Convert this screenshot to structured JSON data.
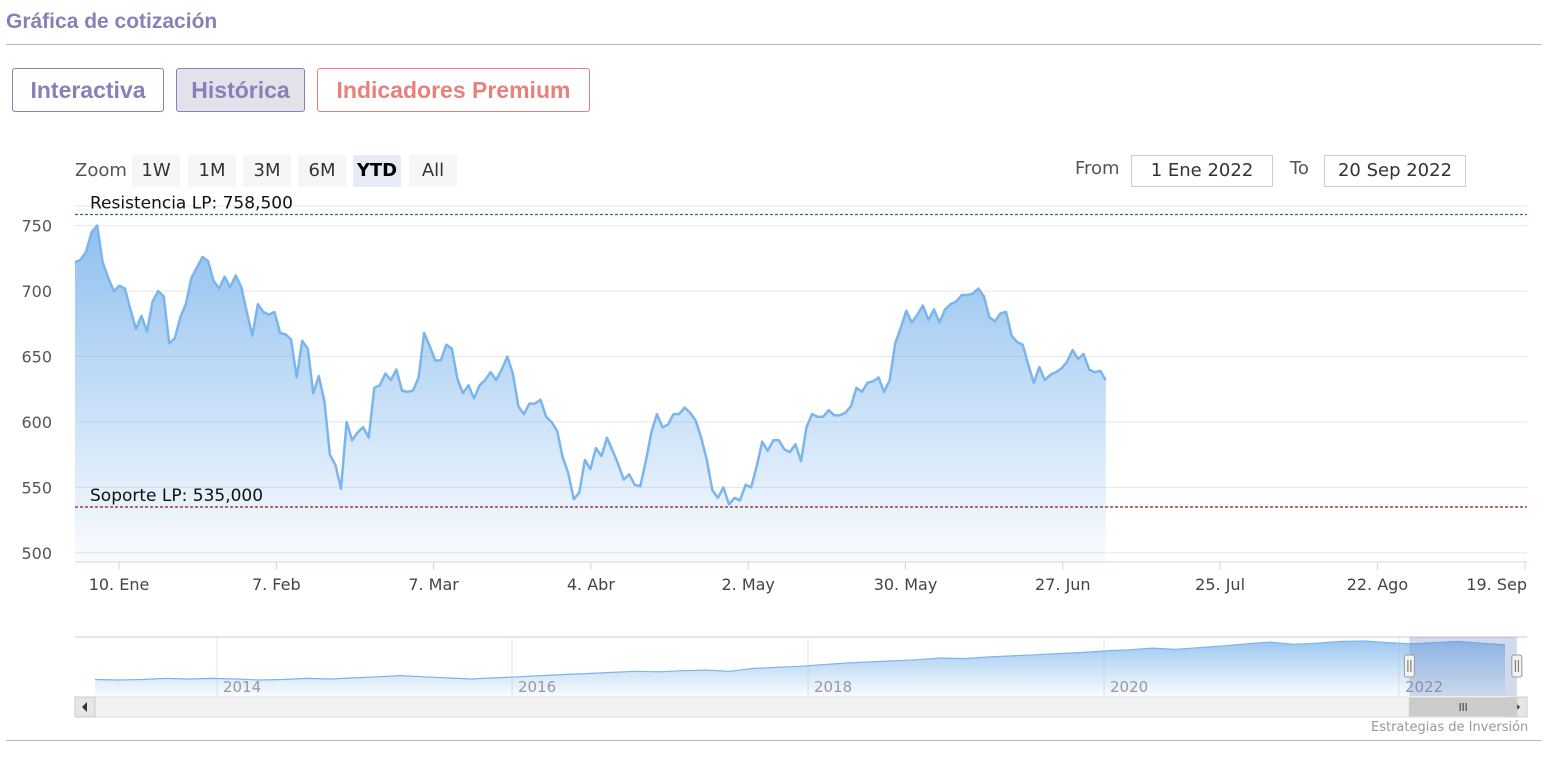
{
  "page": {
    "title": "Gráfica de cotización"
  },
  "tabs": [
    {
      "label": "Interactiva"
    },
    {
      "label": "Histórica"
    },
    {
      "label": "Indicadores Premium"
    }
  ],
  "zoom": {
    "label": "Zoom",
    "buttons": [
      "1W",
      "1M",
      "3M",
      "6M",
      "YTD",
      "All"
    ],
    "selected": "YTD"
  },
  "range": {
    "from_label": "From",
    "from_value": "1 Ene 2022",
    "to_label": "To",
    "to_value": "20 Sep 2022"
  },
  "chart_data": {
    "type": "area",
    "y_ticks": [
      "750",
      "700",
      "650",
      "600",
      "550",
      "500"
    ],
    "x_ticks": [
      "10. Ene",
      "7. Feb",
      "7. Mar",
      "4. Abr",
      "2. May",
      "30. May",
      "27. Jun",
      "25. Jul",
      "22. Ago",
      "19. Sep"
    ],
    "ylim": [
      493,
      765
    ],
    "xlim": [
      "2022-01-01",
      "2022-09-20"
    ],
    "plot_lines": [
      {
        "label": "Resistencia LP: 758,500",
        "value": 758.5,
        "color": "#2e7d32"
      },
      {
        "label": "Soporte LP: 535,000",
        "value": 535.0,
        "color": "#8b1a1a"
      }
    ],
    "series": [
      {
        "color": "#7cb5ec",
        "points": [
          [
            "2022-01-01",
            722
          ],
          [
            "2022-01-02",
            724
          ],
          [
            "2022-01-03",
            730
          ],
          [
            "2022-01-04",
            745
          ],
          [
            "2022-01-05",
            750
          ],
          [
            "2022-01-06",
            722
          ],
          [
            "2022-01-07",
            710
          ],
          [
            "2022-01-08",
            700
          ],
          [
            "2022-01-09",
            704
          ],
          [
            "2022-01-10",
            702
          ],
          [
            "2022-01-11",
            686
          ],
          [
            "2022-01-12",
            671
          ],
          [
            "2022-01-13",
            681
          ],
          [
            "2022-01-14",
            669
          ],
          [
            "2022-01-15",
            692
          ],
          [
            "2022-01-16",
            700
          ],
          [
            "2022-01-17",
            696
          ],
          [
            "2022-01-18",
            660
          ],
          [
            "2022-01-19",
            664
          ],
          [
            "2022-01-20",
            680
          ],
          [
            "2022-01-21",
            690
          ],
          [
            "2022-01-22",
            710
          ],
          [
            "2022-01-23",
            718
          ],
          [
            "2022-01-24",
            726
          ],
          [
            "2022-01-25",
            723
          ],
          [
            "2022-01-26",
            708
          ],
          [
            "2022-01-27",
            702
          ],
          [
            "2022-01-28",
            711
          ],
          [
            "2022-01-29",
            703
          ],
          [
            "2022-01-30",
            712
          ],
          [
            "2022-01-31",
            703
          ],
          [
            "2022-02-01",
            684
          ],
          [
            "2022-02-02",
            666
          ],
          [
            "2022-02-03",
            690
          ],
          [
            "2022-02-04",
            684
          ],
          [
            "2022-02-05",
            682
          ],
          [
            "2022-02-06",
            684
          ],
          [
            "2022-02-07",
            668
          ],
          [
            "2022-02-08",
            667
          ],
          [
            "2022-02-09",
            663
          ],
          [
            "2022-02-10",
            634
          ],
          [
            "2022-02-11",
            662
          ],
          [
            "2022-02-12",
            656
          ],
          [
            "2022-02-13",
            622
          ],
          [
            "2022-02-14",
            635
          ],
          [
            "2022-02-15",
            616
          ],
          [
            "2022-02-16",
            575
          ],
          [
            "2022-02-17",
            567
          ],
          [
            "2022-02-18",
            549
          ],
          [
            "2022-02-19",
            600
          ],
          [
            "2022-02-20",
            586
          ],
          [
            "2022-02-21",
            592
          ],
          [
            "2022-02-22",
            596
          ],
          [
            "2022-02-23",
            588
          ],
          [
            "2022-02-24",
            626
          ],
          [
            "2022-02-25",
            628
          ],
          [
            "2022-02-26",
            637
          ],
          [
            "2022-02-27",
            632
          ],
          [
            "2022-02-28",
            640
          ],
          [
            "2022-03-01",
            624
          ],
          [
            "2022-03-02",
            623
          ],
          [
            "2022-03-03",
            624
          ],
          [
            "2022-03-04",
            634
          ],
          [
            "2022-03-05",
            668
          ],
          [
            "2022-03-06",
            658
          ],
          [
            "2022-03-07",
            647
          ],
          [
            "2022-03-08",
            647
          ],
          [
            "2022-03-09",
            659
          ],
          [
            "2022-03-10",
            656
          ],
          [
            "2022-03-11",
            633
          ],
          [
            "2022-03-12",
            622
          ],
          [
            "2022-03-13",
            628
          ],
          [
            "2022-03-14",
            618
          ],
          [
            "2022-03-15",
            628
          ],
          [
            "2022-03-16",
            632
          ],
          [
            "2022-03-17",
            638
          ],
          [
            "2022-03-18",
            632
          ],
          [
            "2022-03-19",
            640
          ],
          [
            "2022-03-20",
            650
          ],
          [
            "2022-03-21",
            637
          ],
          [
            "2022-03-22",
            612
          ],
          [
            "2022-03-23",
            606
          ],
          [
            "2022-03-24",
            614
          ],
          [
            "2022-03-25",
            614
          ],
          [
            "2022-03-26",
            617
          ],
          [
            "2022-03-27",
            604
          ],
          [
            "2022-03-28",
            600
          ],
          [
            "2022-03-29",
            593
          ],
          [
            "2022-03-30",
            573
          ],
          [
            "2022-03-31",
            561
          ],
          [
            "2022-04-01",
            541
          ],
          [
            "2022-04-02",
            546
          ],
          [
            "2022-04-03",
            571
          ],
          [
            "2022-04-04",
            564
          ],
          [
            "2022-04-05",
            580
          ],
          [
            "2022-04-06",
            574
          ],
          [
            "2022-04-07",
            588
          ],
          [
            "2022-04-08",
            578
          ],
          [
            "2022-04-09",
            568
          ],
          [
            "2022-04-10",
            556
          ],
          [
            "2022-04-11",
            560
          ],
          [
            "2022-04-12",
            552
          ],
          [
            "2022-04-13",
            551
          ],
          [
            "2022-04-14",
            570
          ],
          [
            "2022-04-15",
            592
          ],
          [
            "2022-04-16",
            606
          ],
          [
            "2022-04-17",
            596
          ],
          [
            "2022-04-18",
            598
          ],
          [
            "2022-04-19",
            606
          ],
          [
            "2022-04-20",
            606
          ],
          [
            "2022-04-21",
            611
          ],
          [
            "2022-04-22",
            607
          ],
          [
            "2022-04-23",
            601
          ],
          [
            "2022-04-24",
            588
          ],
          [
            "2022-04-25",
            571
          ],
          [
            "2022-04-26",
            548
          ],
          [
            "2022-04-27",
            542
          ],
          [
            "2022-04-28",
            550
          ],
          [
            "2022-04-29",
            537
          ],
          [
            "2022-04-30",
            542
          ],
          [
            "2022-05-01",
            540
          ],
          [
            "2022-05-02",
            552
          ],
          [
            "2022-05-03",
            550
          ],
          [
            "2022-05-04",
            566
          ],
          [
            "2022-05-05",
            585
          ],
          [
            "2022-05-06",
            578
          ],
          [
            "2022-05-07",
            586
          ],
          [
            "2022-05-08",
            586
          ],
          [
            "2022-05-09",
            579
          ],
          [
            "2022-05-10",
            577
          ],
          [
            "2022-05-11",
            583
          ],
          [
            "2022-05-12",
            570
          ],
          [
            "2022-05-13",
            596
          ],
          [
            "2022-05-14",
            606
          ],
          [
            "2022-05-15",
            604
          ],
          [
            "2022-05-16",
            604
          ],
          [
            "2022-05-17",
            609
          ],
          [
            "2022-05-18",
            605
          ],
          [
            "2022-05-19",
            605
          ],
          [
            "2022-05-20",
            607
          ],
          [
            "2022-05-21",
            612
          ],
          [
            "2022-05-22",
            626
          ],
          [
            "2022-05-23",
            623
          ],
          [
            "2022-05-24",
            630
          ],
          [
            "2022-05-25",
            631
          ],
          [
            "2022-05-26",
            634
          ],
          [
            "2022-05-27",
            623
          ],
          [
            "2022-05-28",
            632
          ],
          [
            "2022-05-29",
            660
          ],
          [
            "2022-05-30",
            672
          ],
          [
            "2022-05-31",
            685
          ],
          [
            "2022-06-01",
            676
          ],
          [
            "2022-06-02",
            682
          ],
          [
            "2022-06-03",
            689
          ],
          [
            "2022-06-04",
            678
          ],
          [
            "2022-06-05",
            686
          ],
          [
            "2022-06-06",
            676
          ],
          [
            "2022-06-07",
            686
          ],
          [
            "2022-06-08",
            690
          ],
          [
            "2022-06-09",
            692
          ],
          [
            "2022-06-10",
            697
          ],
          [
            "2022-06-11",
            697
          ],
          [
            "2022-06-12",
            698
          ],
          [
            "2022-06-13",
            702
          ],
          [
            "2022-06-14",
            696
          ],
          [
            "2022-06-15",
            680
          ],
          [
            "2022-06-16",
            677
          ],
          [
            "2022-06-17",
            683
          ],
          [
            "2022-06-18",
            684
          ],
          [
            "2022-06-19",
            666
          ],
          [
            "2022-06-20",
            661
          ],
          [
            "2022-06-21",
            659
          ],
          [
            "2022-06-22",
            644
          ],
          [
            "2022-06-23",
            630
          ],
          [
            "2022-06-24",
            642
          ],
          [
            "2022-06-25",
            632
          ],
          [
            "2022-06-26",
            636
          ],
          [
            "2022-06-27",
            638
          ],
          [
            "2022-06-28",
            641
          ],
          [
            "2022-06-29",
            646
          ],
          [
            "2022-06-30",
            655
          ],
          [
            "2022-07-01",
            648
          ],
          [
            "2022-07-02",
            652
          ],
          [
            "2022-07-03",
            640
          ],
          [
            "2022-07-04",
            638
          ],
          [
            "2022-07-05",
            639
          ],
          [
            "2022-07-06",
            632
          ]
        ]
      }
    ]
  },
  "navigator": {
    "year_labels": [
      "2014",
      "2016",
      "2018",
      "2020",
      "2022"
    ],
    "series": [
      [
        0,
        30
      ],
      [
        4,
        29
      ],
      [
        8,
        30
      ],
      [
        12,
        32
      ],
      [
        16,
        31
      ],
      [
        20,
        32
      ],
      [
        24,
        31
      ],
      [
        28,
        29
      ],
      [
        32,
        30
      ],
      [
        36,
        32
      ],
      [
        40,
        31
      ],
      [
        44,
        33
      ],
      [
        48,
        35
      ],
      [
        52,
        37
      ],
      [
        56,
        35
      ],
      [
        60,
        33
      ],
      [
        64,
        31
      ],
      [
        68,
        33
      ],
      [
        72,
        35
      ],
      [
        76,
        37
      ],
      [
        80,
        39
      ],
      [
        84,
        41
      ],
      [
        88,
        43
      ],
      [
        92,
        45
      ],
      [
        96,
        44
      ],
      [
        100,
        46
      ],
      [
        104,
        47
      ],
      [
        108,
        45
      ],
      [
        112,
        50
      ],
      [
        116,
        52
      ],
      [
        120,
        54
      ],
      [
        124,
        57
      ],
      [
        128,
        60
      ],
      [
        132,
        62
      ],
      [
        136,
        64
      ],
      [
        140,
        66
      ],
      [
        144,
        69
      ],
      [
        148,
        68
      ],
      [
        152,
        71
      ],
      [
        156,
        73
      ],
      [
        160,
        75
      ],
      [
        164,
        77
      ],
      [
        168,
        79
      ],
      [
        172,
        82
      ],
      [
        176,
        84
      ],
      [
        180,
        87
      ],
      [
        184,
        85
      ],
      [
        188,
        88
      ],
      [
        192,
        91
      ],
      [
        196,
        95
      ],
      [
        200,
        98
      ],
      [
        204,
        94
      ],
      [
        208,
        96
      ],
      [
        212,
        99
      ],
      [
        216,
        100
      ],
      [
        220,
        97
      ],
      [
        224,
        95
      ],
      [
        228,
        97
      ],
      [
        232,
        99
      ],
      [
        236,
        96
      ],
      [
        240,
        93
      ]
    ],
    "selection": [
      0.919,
      0.993
    ]
  },
  "credit": "Estrategias de Inversión"
}
